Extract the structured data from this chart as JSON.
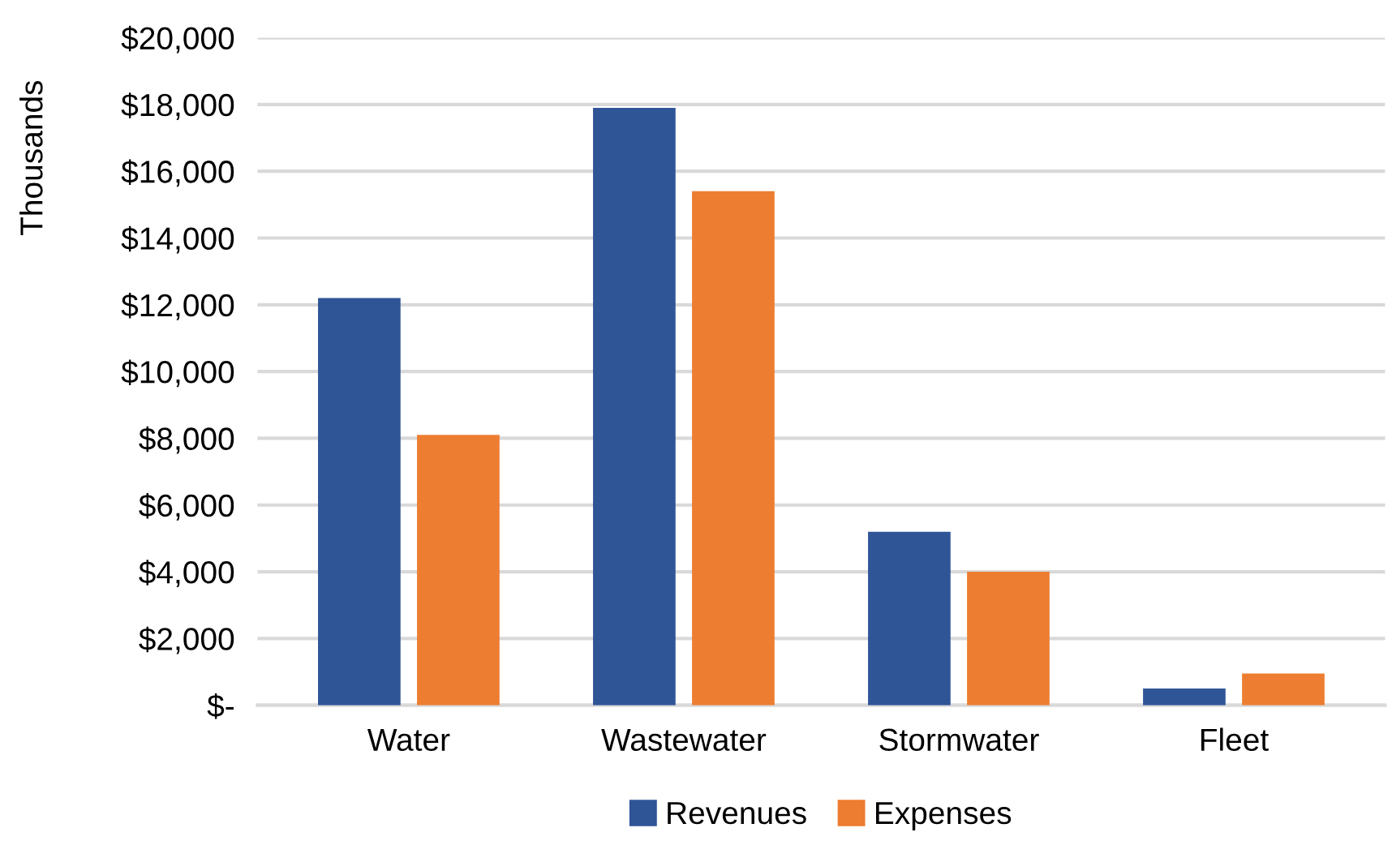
{
  "chart_data": {
    "type": "bar",
    "ylabel": "Thousands",
    "categories": [
      "Water",
      "Wastewater",
      "Stormwater",
      "Fleet"
    ],
    "series": [
      {
        "name": "Revenues",
        "color": "#2f5597",
        "values": [
          12200,
          17900,
          5200,
          500
        ]
      },
      {
        "name": "Expenses",
        "color": "#ed7d31",
        "values": [
          8100,
          15400,
          4000,
          950
        ]
      }
    ],
    "ylim": [
      0,
      20000
    ],
    "yticks": [
      {
        "value": 0,
        "label": "$-"
      },
      {
        "value": 2000,
        "label": "$2,000"
      },
      {
        "value": 4000,
        "label": "$4,000"
      },
      {
        "value": 6000,
        "label": "$6,000"
      },
      {
        "value": 8000,
        "label": "$8,000"
      },
      {
        "value": 10000,
        "label": "$10,000"
      },
      {
        "value": 12000,
        "label": "$12,000"
      },
      {
        "value": 14000,
        "label": "$14,000"
      },
      {
        "value": 16000,
        "label": "$16,000"
      },
      {
        "value": 18000,
        "label": "$18,000"
      },
      {
        "value": 20000,
        "label": "$20,000"
      }
    ],
    "grid": "y",
    "legend": "bottom"
  }
}
